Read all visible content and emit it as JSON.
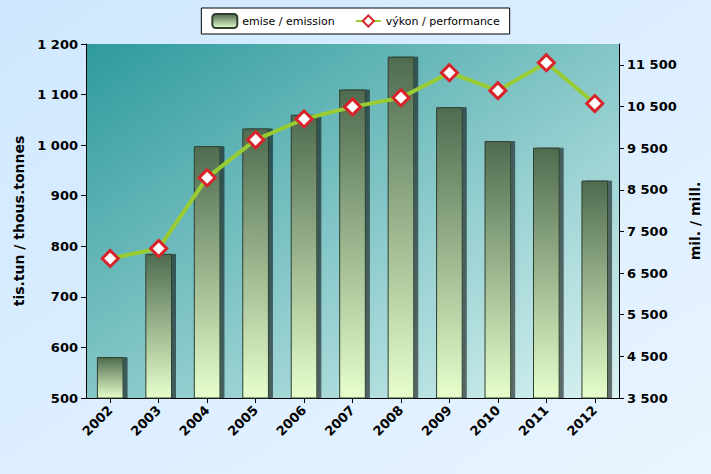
{
  "chart_data": {
    "type": "bar",
    "categories": [
      "2002",
      "2003",
      "2004",
      "2005",
      "2006",
      "2007",
      "2008",
      "2009",
      "2010",
      "2011",
      "2012"
    ],
    "series": [
      {
        "name": "emise / emission",
        "type": "bar",
        "color": "#4f6b4f",
        "values": [
          581,
          785,
          998,
          1033,
          1060,
          1110,
          1175,
          1075,
          1008,
          995,
          930
        ]
      },
      {
        "name": "výkon / performance",
        "type": "line",
        "axis": "y2",
        "color": "#99cc33",
        "marker": "diamond",
        "line_style": "solid",
        "values": [
          6850,
          7090,
          8790,
          9700,
          10200,
          10490,
          10710,
          11310,
          10880,
          11550,
          10570
        ]
      }
    ],
    "y_label": "tis.tun / thous.tonnes",
    "y2_label": "mil. / mill.",
    "ylim": [
      500,
      1200
    ],
    "yticks": [
      500,
      600,
      700,
      800,
      900,
      {
        "value": 1000,
        "label": "1 000"
      },
      {
        "value": 1100,
        "label": "1 100"
      },
      {
        "value": 1200,
        "label": "1 200"
      }
    ],
    "y2lim": [
      3500,
      12000
    ],
    "y2ticks": [
      {
        "value": 3500,
        "label": "3 500"
      },
      {
        "value": 4500,
        "label": "4 500"
      },
      {
        "value": 5500,
        "label": "5 500"
      },
      {
        "value": 6500,
        "label": "6 500"
      },
      {
        "value": 7500,
        "label": "7 500"
      },
      {
        "value": 8500,
        "label": "8 500"
      },
      {
        "value": 9500,
        "label": "9 500"
      },
      {
        "value": 10500,
        "label": "10 500"
      },
      {
        "value": 11500,
        "label": "11 500"
      }
    ],
    "grid": false,
    "legend": "top"
  }
}
